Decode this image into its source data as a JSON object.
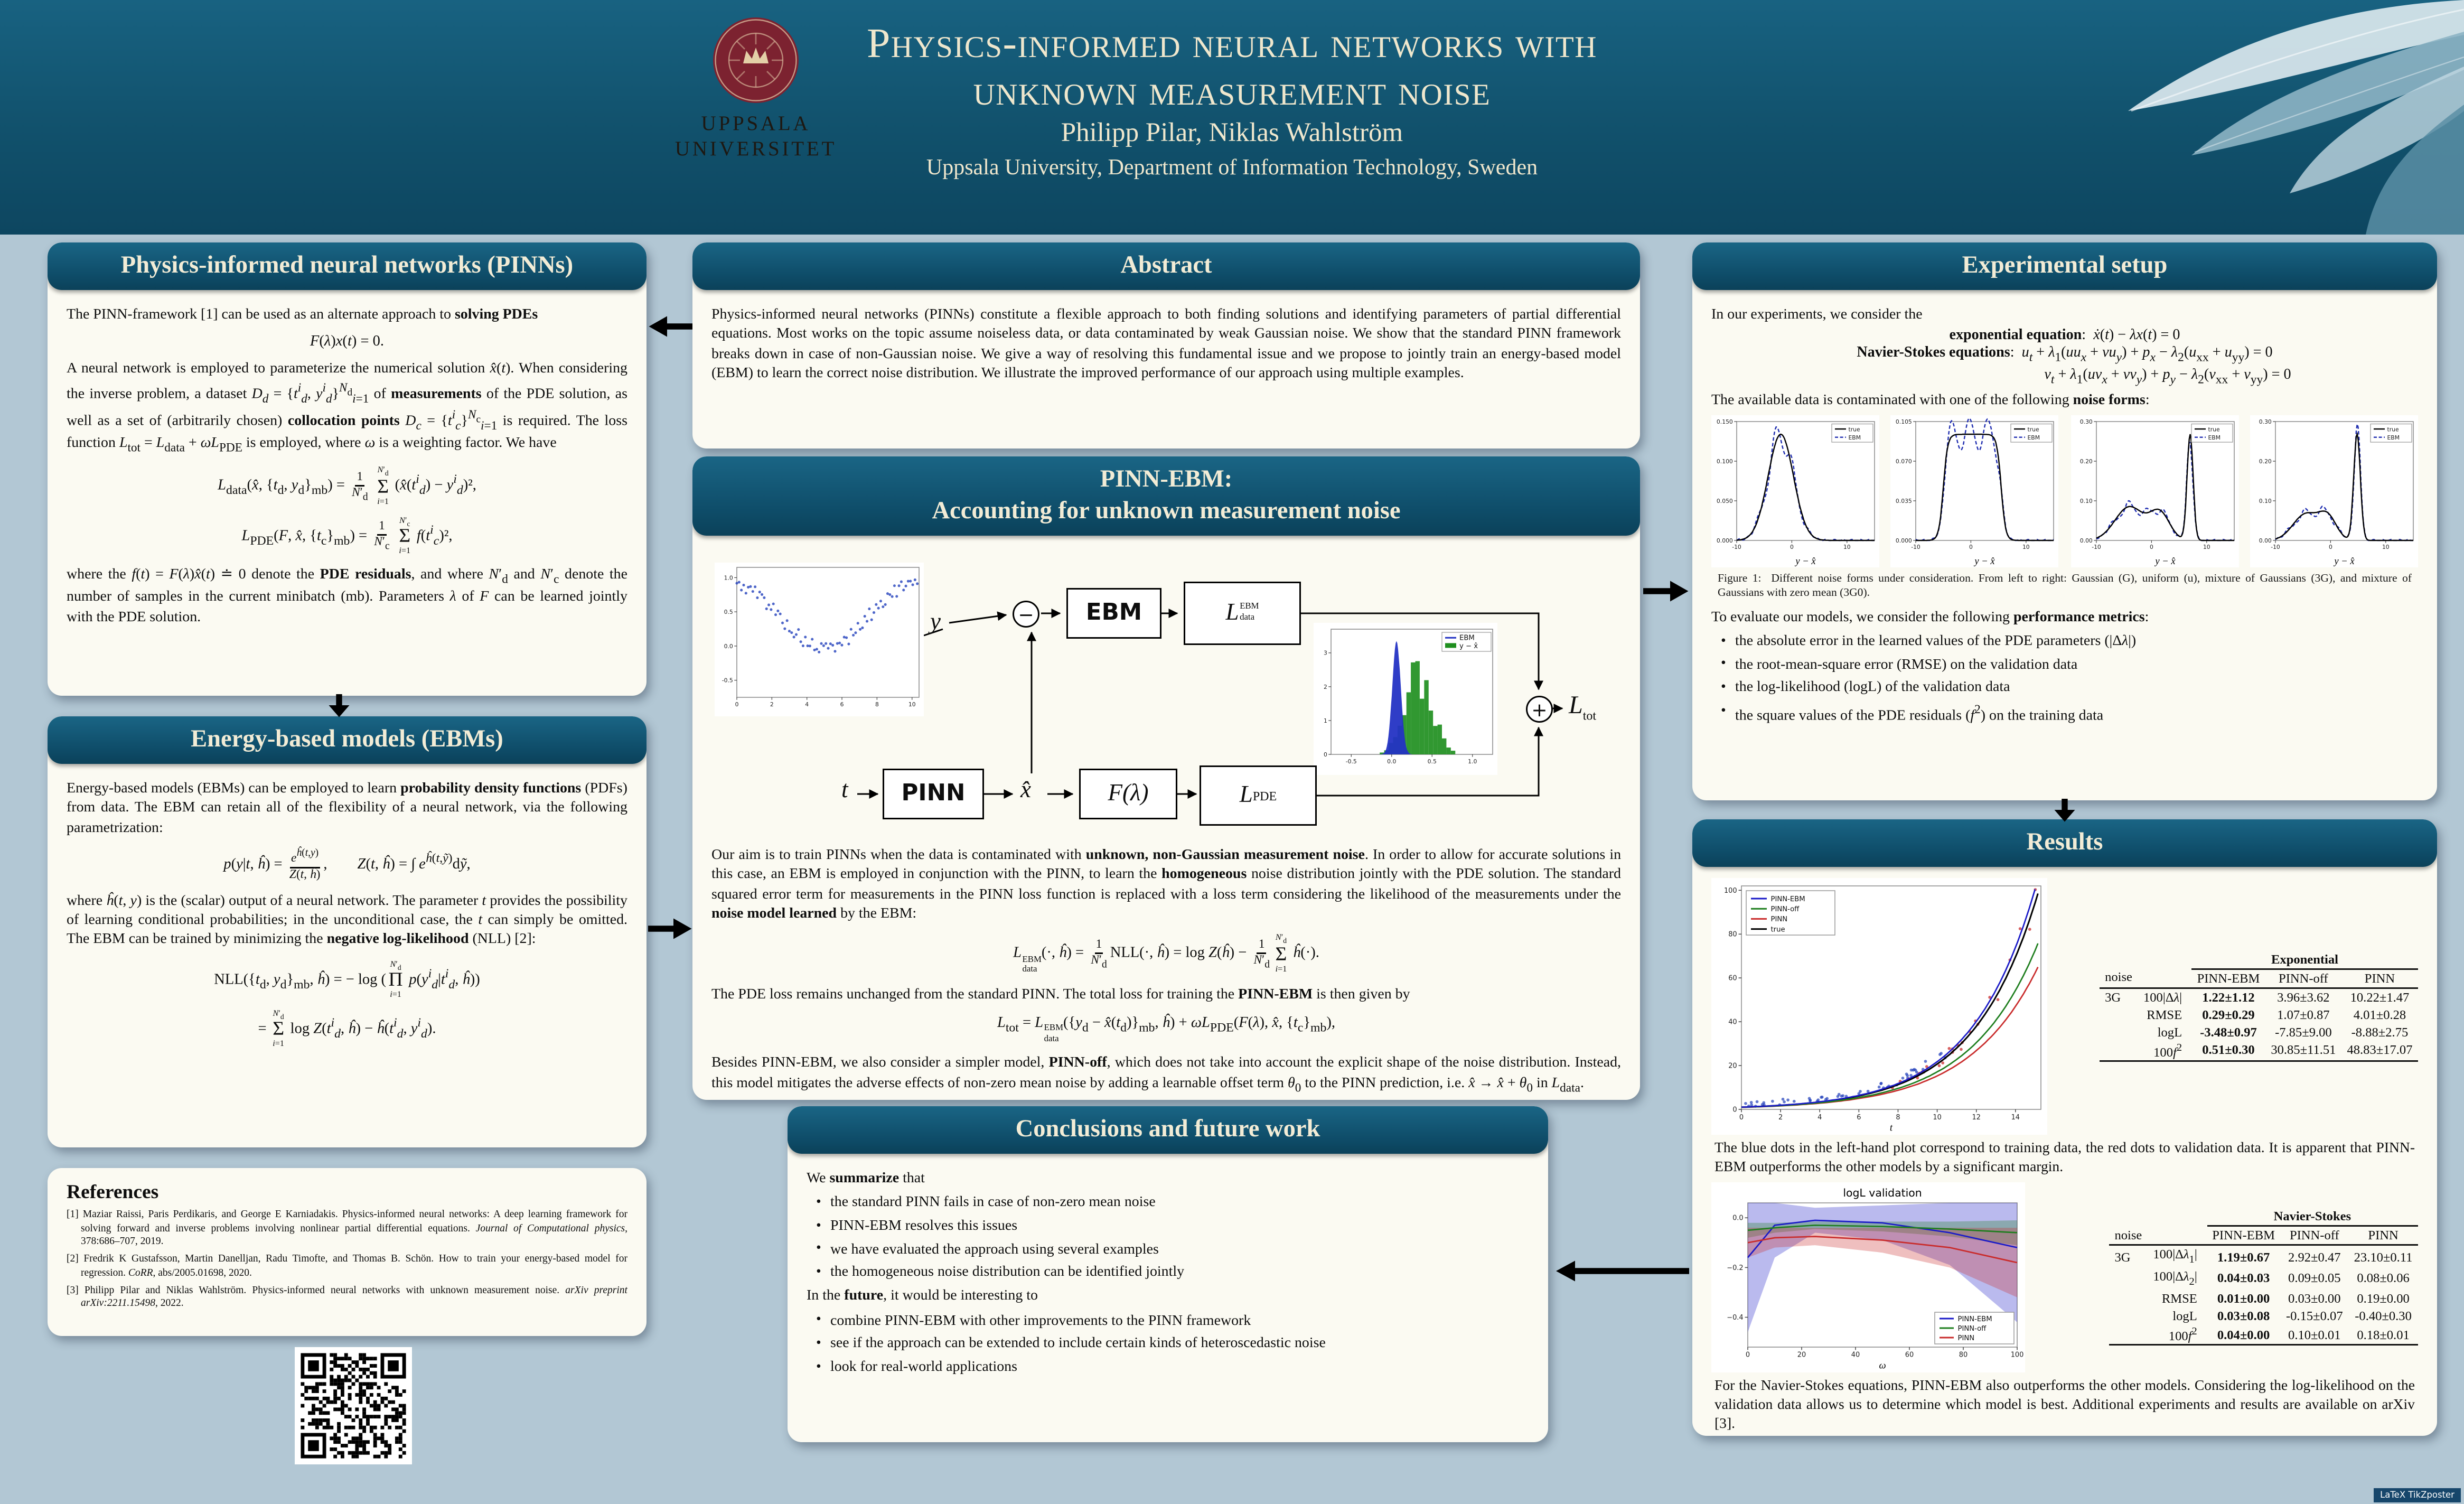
{
  "header": {
    "title_line1": "Physics-informed neural networks with",
    "title_line2": "unknown measurement noise",
    "authors": "Philipp Pilar, Niklas Wahlström",
    "affiliation": "Uppsala University, Department of Information Technology, Sweden",
    "logo_line1": "UPPSALA",
    "logo_line2": "UNIVERSITET"
  },
  "footer": {
    "badge": "LaTeX TikZposter"
  },
  "blocks": {
    "pinns": {
      "title": "Physics-informed neural networks (PINNs)",
      "p1": "The PINN-framework [1] can be used as an alternate approach to <b>solving PDEs</b>",
      "eq_pde": "<i>F</i>(<i>λ</i>)<i>x</i>(<i>t</i>) = 0.",
      "p2": "A neural network is employed to parameterize the numerical solution <i>x̂</i>(<i>t</i>). When considering the inverse problem, a dataset <i>D</i><sub><i>d</i></sub> = {<i>t</i><sup><i>i</i></sup><sub><i>d</i></sub>, <i>y</i><sup><i>i</i></sup><sub><i>d</i></sub>}<sup><i>N</i><sub>d</sub></sup><sub><i>i</i>=1</sub> of <b>measurements</b> of the PDE solution, as well as a set of (arbitrarily chosen) <b>collocation points</b> <i>D</i><sub><i>c</i></sub> = {<i>t</i><sup><i>i</i></sup><sub><i>c</i></sub>}<sup><i>N</i><sub>c</sub></sup><sub><i>i</i>=1</sub> is required. The loss function <i>L</i><sub>tot</sub> = <i>L</i><sub>data</sub> + <i>ωL</i><sub>PDE</sub> is employed, where <i>ω</i> is a weighting factor. We have",
      "eq_ldata": "<i>L</i><sub>data</sub>(<i>x̂</i>, {<i>t</i><sub>d</sub>, <i>y</i><sub>d</sub>}<sub>mb</sub>) = <span class='frac'><span class='ftop'>1</span><span><i>N</i>′<sub>d</sub></span></span> <span class='sum'><span class='lim'><i>N</i>′<sub>d</sub></span><span class='sig'>Σ</span><span class='lim'><i>i</i>=1</span></span> (<i>x̂</i>(<i>t</i><sup><i>i</i></sup><sub><i>d</i></sub>) − <i>y</i><sup><i>i</i></sup><sub><i>d</i></sub>)²,",
      "eq_lpde": "<i>L</i><sub>PDE</sub>(<i>F</i>, <i>x̂</i>, {<i>t</i><sub>c</sub>}<sub>mb</sub>) = <span class='frac'><span class='ftop'>1</span><span><i>N</i>′<sub>c</sub></span></span> <span class='sum'><span class='lim'><i>N</i>′<sub>c</sub></span><span class='sig'>Σ</span><span class='lim'><i>i</i>=1</span></span> <i>f</i>(<i>t</i><sup><i>i</i></sup><sub><i>c</i></sub>)²,",
      "p3": "where the <i>f</i>(<i>t</i>) = <i>F</i>(<i>λ</i>)<i>x̂</i>(<i>t</i>) <span class='dj'>≐</span> 0 denote the <b>PDE residuals</b>, and where <i>N</i>′<sub>d</sub> and <i>N</i>′<sub>c</sub> denote the number of samples in the current minibatch (mb). Parameters <i>λ</i> of <i>F</i> can be learned jointly with the PDE solution."
    },
    "ebms": {
      "title": "Energy-based models (EBMs)",
      "p1": "Energy-based models (EBMs) can be employed to learn <b>probability density functions</b> (PDFs) from data. The EBM can retain all of the flexibility of a neural network, via the following parametrization:",
      "eq_p": "<i>p</i>(<i>y</i>|<i>t</i>, <i>ĥ</i>) = <span class='frac'><span class='ftop'><i>e</i><sup><i>ĥ</i>(<i>t</i>,<i>y</i>)</sup></span><span><i>Z</i>(<i>t</i>, <i>ĥ</i>)</span></span>,&emsp;&emsp;<i>Z</i>(<i>t</i>, <i>ĥ</i>) = ∫ <i>e</i><sup><i>ĥ</i>(<i>t</i>,<i>ỹ</i>)</sup>d<i>ỹ</i>,",
      "p2": "where <i>ĥ</i>(<i>t</i>, <i>y</i>) is the (scalar) output of a neural network. The parameter <i>t</i> provides the possibility of learning conditional probabilities; in the unconditional case, the <i>t</i> can simply be omitted. The EBM can be trained by minimizing the <b>negative log-likelihood</b> (NLL) [2]:",
      "eq_nll1": "NLL({<i>t</i><sub>d</sub>, <i>y</i><sub>d</sub>}<sub>mb</sub>, <i>ĥ</i>) = − log (<span class='sum'><span class='lim'><i>N</i>′<sub>d</sub></span><span class='sig'>Π</span><span class='lim'><i>i</i>=1</span></span> <i>p</i>(<i>y</i><sup><i>i</i></sup><sub><i>d</i></sub>|<i>t</i><sup><i>i</i></sup><sub><i>d</i></sub>, <i>ĥ</i>))",
      "eq_nll2": "= <span class='sum'><span class='lim'><i>N</i>′<sub>d</sub></span><span class='sig'>Σ</span><span class='lim'><i>i</i>=1</span></span> log <i>Z</i>(<i>t</i><sup><i>i</i></sup><sub><i>d</i></sub>, <i>ĥ</i>) − <i>ĥ</i>(<i>t</i><sup><i>i</i></sup><sub><i>d</i></sub>, <i>y</i><sup><i>i</i></sup><sub><i>d</i></sub>)."
    },
    "references": {
      "title": "References",
      "items": [
        "[1] Maziar Raissi, Paris Perdikaris, and George E Karniadakis. Physics-informed neural networks: A deep learning framework for solving forward and inverse problems involving nonlinear partial differential equations. <i>Journal of Computational physics</i>, 378:686–707, 2019.",
        "[2] Fredrik K Gustafsson, Martin Danelljan, Radu Timofte, and Thomas B. Schön. How to train your energy-based model for regression. <i>CoRR</i>, abs/2005.01698, 2020.",
        "[3] Philipp Pilar and Niklas Wahlström. Physics-informed neural networks with unknown measurement noise. <i>arXiv preprint arXiv:2211.15498</i>, 2022."
      ]
    },
    "abstract": {
      "title": "Abstract",
      "text": "Physics-informed neural networks (PINNs) constitute a flexible approach to both finding solutions and identifying parameters of partial differential equations. Most works on the topic assume noiseless data, or data contaminated by weak Gaussian noise. We show that the standard PINN framework breaks down in case of non-Gaussian noise. We give a way of resolving this fundamental issue and we propose to jointly train an energy-based model (EBM) to learn the correct noise distribution. We illustrate the improved performance of our approach using multiple examples."
    },
    "pinn_ebm": {
      "title1": "PINN-EBM:",
      "title2": "Accounting for unknown measurement noise",
      "diagram": {
        "y_label": "y",
        "t_label": "t",
        "xhat_label": "x̂",
        "minus": "−",
        "plus": "+",
        "pinn_box": "PINN",
        "ebm_box": "EBM",
        "f_box": "F(λ)",
        "loss_main": "L",
        "loss_data_sup": "EBM",
        "loss_data_sub": "data",
        "loss_pde_sub": "PDE",
        "loss_tot_sub": "tot"
      },
      "p1": "Our aim is to train PINNs when the data is contaminated with <b>unknown, non-Gaussian measurement noise</b>. In order to allow for accurate solutions in this case, an EBM is employed in conjunction with the PINN, to learn the <b>homogeneous</b> noise distribution jointly with the PDE solution. The standard squared error term for measurements in the PINN loss function is replaced with a loss term considering the likelihood of the measurements under the <b>noise model learned</b> by the EBM:",
      "eq1": "<i>L</i><span class='supsub'><span>EBM</span><span>data</span></span>(·, <i>ĥ</i>) = <span class='frac'><span class='ftop'>1</span><span><i>N</i>′<sub>d</sub></span></span>NLL(·, <i>ĥ</i>) = log <i>Z</i>(<i>ĥ</i>) − <span class='frac'><span class='ftop'>1</span><span><i>N</i>′<sub>d</sub></span></span><span class='sum'><span class='lim'><i>N</i>′<sub>d</sub></span><span class='sig'>Σ</span><span class='lim'><i>i</i>=1</span></span> <i>ĥ</i>(·).",
      "p2": "The PDE loss remains unchanged from the standard PINN. The total loss for training the <b>PINN-EBM</b> is then given by",
      "eq2": "<i>L</i><sub>tot</sub> = <i>L</i><span class='supsub'><span>EBM</span><span>data</span></span>({<i>y</i><sub>d</sub> − <i>x̂</i>(<i>t</i><sub>d</sub>)}<sub>mb</sub>, <i>ĥ</i>) + <i>ωL</i><sub>PDE</sub>(<i>F</i>(<i>λ</i>), <i>x̂</i>, {<i>t</i><sub>c</sub>}<sub>mb</sub>),",
      "p3": "Besides PINN-EBM, we also consider a simpler model, <b>PINN-off</b>, which does not take into account the explicit shape of the noise distribution. Instead, this model mitigates the adverse effects of non-zero mean noise by adding a learnable offset term <i>θ</i><sub>0</sub> to the PINN prediction, i.e. <i>x̂</i> → <i>x̂</i> + <i>θ</i><sub>0</sub> in <i>L</i><sub>data</sub>."
    },
    "conclusions": {
      "title": "Conclusions and future work",
      "intro1": "We <b>summarize</b> that",
      "bullets1": [
        "the standard PINN fails in case of non-zero mean noise",
        "PINN-EBM resolves this issues",
        "we have evaluated the approach using several examples",
        "the homogeneous noise distribution can be identified jointly"
      ],
      "intro2": "In the <b>future</b>, it would be interesting to",
      "bullets2": [
        "combine PINN-EBM with other improvements to the PINN framework",
        "see if the approach can be extended to include certain kinds of heteroscedastic noise",
        "look for real-world applications"
      ]
    },
    "experimental": {
      "title": "Experimental setup",
      "p1": "In our experiments, we consider the",
      "eq_exp": "<b>exponential equation</b>: &nbsp;<i>ẋ</i>(<i>t</i>) − <i>λx</i>(<i>t</i>) = 0",
      "eq_ns1": "<b>Navier-Stokes equations</b>: &nbsp;<i>u</i><sub><i>t</i></sub> + <i>λ</i><sub>1</sub>(<i>uu</i><sub><i>x</i></sub> + <i>vu</i><sub><i>y</i></sub>) + <i>p</i><sub><i>x</i></sub> − <i>λ</i><sub>2</sub>(<i>u</i><sub>xx</sub> + <i>u</i><sub>yy</sub>) = 0",
      "eq_ns2": "<i>v</i><sub><i>t</i></sub> + <i>λ</i><sub>1</sub>(<i>uv</i><sub><i>x</i></sub> + <i>vv</i><sub><i>y</i></sub>) + <i>p</i><sub><i>y</i></sub> − <i>λ</i><sub>2</sub>(<i>v</i><sub>xx</sub> + <i>v</i><sub>yy</sub>) = 0",
      "p2": "The available data is contaminated with one of the following <b>noise forms</b>:",
      "figure_caption": "Figure 1: &nbsp;Different noise forms under consideration. From left to right: Gaussian (G), uniform (u), mixture of Gaussians (3G), and mixture of Gaussians with zero mean (3G0).",
      "p3": "To evaluate our models, we consider the following <b>performance metrics</b>:",
      "metrics": [
        "the absolute error in the learned values of the PDE parameters (|Δ<i>λ</i>|)",
        "the root-mean-square error (RMSE) on the validation data",
        "the log-likelihood (logL) of the validation data",
        "the square values of the PDE residuals (<i>f</i><sup>2</sup>) on the training data"
      ]
    },
    "results": {
      "title": "Results",
      "p1": "The blue dots in the left-hand plot correspond to training data, the red dots to validation data. It is apparent that PINN-EBM outperforms the other models by a significant margin.",
      "p2": "For the Navier-Stokes equations, PINN-EBM also outperforms the other models. Considering the log-likelihood on the validation data allows us to determine which model is best. Additional experiments and results are available on arXiv [3].",
      "exp_table": {
        "group": "Exponential",
        "headers": [
          "noise",
          "",
          "PINN-EBM",
          "PINN-off",
          "PINN"
        ],
        "rows": [
          {
            "noise": "3G",
            "metric": "100|Δ<i>λ</i>|",
            "ebm": "1.22±1.12",
            "off": "3.96±3.62",
            "pinn": "10.22±1.47"
          },
          {
            "noise": "",
            "metric": "RMSE",
            "ebm": "0.29±0.29",
            "off": "1.07±0.87",
            "pinn": "4.01±0.28"
          },
          {
            "noise": "",
            "metric": "logL",
            "ebm": "-3.48±0.97",
            "off": "-7.85±9.00",
            "pinn": "-8.88±2.75"
          },
          {
            "noise": "",
            "metric": "100<i>f</i><sup>2</sup>",
            "ebm": "0.51±0.30",
            "off": "30.85±11.51",
            "pinn": "48.83±17.07"
          }
        ]
      },
      "ns_table": {
        "group": "Navier-Stokes",
        "headers": [
          "noise",
          "",
          "PINN-EBM",
          "PINN-off",
          "PINN"
        ],
        "rows": [
          {
            "noise": "3G",
            "metric": "100|Δ<i>λ</i><sub>1</sub>|",
            "ebm": "1.19±0.67",
            "off": "2.92±0.47",
            "pinn": "23.10±0.11"
          },
          {
            "noise": "",
            "metric": "100|Δ<i>λ</i><sub>2</sub>|",
            "ebm": "0.04±0.03",
            "off": "0.09±0.05",
            "pinn": "0.08±0.06"
          },
          {
            "noise": "",
            "metric": "RMSE",
            "ebm": "0.01±0.00",
            "off": "0.03±0.00",
            "pinn": "0.19±0.00"
          },
          {
            "noise": "",
            "metric": "logL",
            "ebm": "0.03±0.08",
            "off": "-0.15±0.07",
            "pinn": "-0.40±0.30"
          },
          {
            "noise": "",
            "metric": "100<i>f</i><sup>2</sup>",
            "ebm": "0.04±0.00",
            "off": "0.10±0.01",
            "pinn": "0.18±0.01"
          }
        ]
      }
    }
  },
  "charts": {
    "noise_figure": {
      "plots": [
        {
          "name": "Gaussian (G)",
          "legend": [
            "true",
            "EBM"
          ],
          "xlabel": "y − x̂",
          "xlim": [
            -10,
            15
          ],
          "xticks": [
            -10,
            0,
            10
          ],
          "yticks": [
            "0.000",
            "0.050",
            "0.100",
            "0.150"
          ],
          "components": [
            {
              "mu": -2,
              "sigma": 2.3,
              "w": 1
            }
          ],
          "seed": 1
        },
        {
          "name": "uniform (u)",
          "legend": [
            "true",
            "EBM"
          ],
          "xlabel": "y − x̂",
          "xlim": [
            -10,
            15
          ],
          "xticks": [
            -10,
            0,
            10
          ],
          "yticks": [
            "0.000",
            "0.035",
            "0.070",
            "0.105"
          ],
          "uniform": {
            "a": -5,
            "b": 5.5,
            "h": 0.095
          },
          "seed": 2
        },
        {
          "name": "mixture of Gaussians (3G)",
          "legend": [
            "true",
            "EBM"
          ],
          "xlabel": "y − x̂",
          "xlim": [
            -10,
            15
          ],
          "xticks": [
            -10,
            0,
            10
          ],
          "yticks": [
            "0.00",
            "0.10",
            "0.20",
            "0.30"
          ],
          "components": [
            {
              "mu": -4,
              "sigma": 2.6,
              "w": 0.45
            },
            {
              "mu": 1.5,
              "sigma": 1.8,
              "w": 0.25
            },
            {
              "mu": 7,
              "sigma": 0.55,
              "w": 0.3
            }
          ],
          "seed": 3
        },
        {
          "name": "mixture of Gaussians with zero mean (3G0)",
          "legend": [
            "true",
            "EBM"
          ],
          "xlabel": "y − x̂",
          "xlim": [
            -10,
            15
          ],
          "xticks": [
            -10,
            0,
            10
          ],
          "yticks": [
            "0.00",
            "0.10",
            "0.20",
            "0.30"
          ],
          "components": [
            {
              "mu": -4.5,
              "sigma": 2.3,
              "w": 0.38
            },
            {
              "mu": -0.5,
              "sigma": 1.6,
              "w": 0.22
            },
            {
              "mu": 4.8,
              "sigma": 0.6,
              "w": 0.4
            }
          ],
          "seed": 4
        }
      ]
    },
    "data_scatter": {
      "type": "scatter",
      "xticks": [
        0,
        2,
        4,
        6,
        8,
        10
      ],
      "yticks": [
        "-0.5",
        "0.0",
        "0.5",
        "1.0"
      ],
      "dot_color": "#2240bb"
    },
    "residual_hist": {
      "type": "histogram",
      "legend": [
        "EBM",
        "y − x̂"
      ],
      "xticks": [
        -0.5,
        0,
        0.5,
        1
      ],
      "yticks": [
        0,
        1,
        2,
        3
      ],
      "ebm_color": "#2433c4",
      "hist_color": "#1f8f1f"
    },
    "exp_plot": {
      "type": "line",
      "xlabel": "t",
      "xlim": [
        0,
        15.3
      ],
      "ylim": [
        0,
        102
      ],
      "xticks": [
        0,
        2,
        4,
        6,
        8,
        10,
        12,
        14
      ],
      "yticks": [
        0,
        20,
        40,
        60,
        80,
        100
      ],
      "series": [
        {
          "name": "PINN-EBM",
          "color": "#1a1ac8",
          "rate": 0.306,
          "scale": 1.02
        },
        {
          "name": "PINN-off",
          "color": "#1e7e1e",
          "rate": 0.289,
          "scale": 0.95
        },
        {
          "name": "PINN",
          "color": "#c92c2c",
          "rate": 0.281,
          "scale": 0.92
        },
        {
          "name": "true",
          "color": "#000000",
          "rate": 0.303,
          "scale": 1
        }
      ],
      "train_color": "#2240bb",
      "val_color": "#c92c2c"
    },
    "logl_plot": {
      "type": "band",
      "title": "logL validation",
      "xlabel": "ω",
      "x": [
        0,
        10,
        25,
        50,
        75,
        100
      ],
      "xticks": [
        0,
        20,
        40,
        60,
        80,
        100
      ],
      "yticks": [
        "0.0",
        "−0.2",
        "−0.4"
      ],
      "series": [
        {
          "name": "PINN-EBM",
          "color": "#1a1ac8",
          "center": [
            -0.16,
            -0.03,
            -0.01,
            -0.02,
            -0.06,
            -0.12
          ],
          "half": [
            0.3,
            0.13,
            0.05,
            0.07,
            0.13,
            0.3
          ]
        },
        {
          "name": "PINN-off",
          "color": "#1e7e1e",
          "center": [
            -0.05,
            -0.04,
            -0.03,
            -0.035,
            -0.045,
            -0.06
          ],
          "half": [
            0.03,
            0.02,
            0.015,
            0.02,
            0.03,
            0.05
          ]
        },
        {
          "name": "PINN",
          "color": "#c92c2c",
          "center": [
            -0.1,
            -0.08,
            -0.075,
            -0.09,
            -0.12,
            -0.18
          ],
          "half": [
            0.06,
            0.04,
            0.035,
            0.05,
            0.08,
            0.14
          ]
        }
      ]
    }
  }
}
